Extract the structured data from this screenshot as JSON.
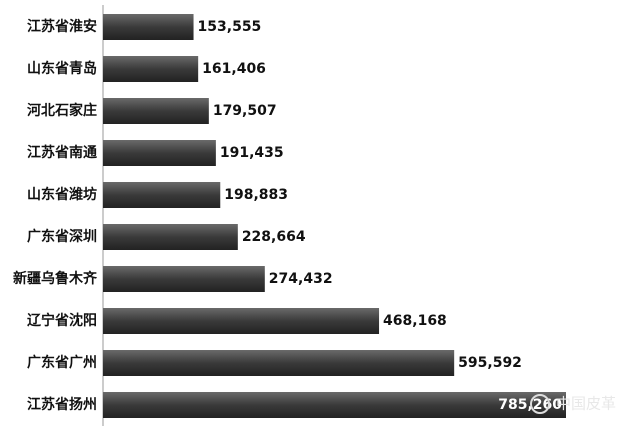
{
  "chart_data": {
    "type": "bar",
    "orientation": "horizontal",
    "categories": [
      "江苏省淮安",
      "山东省青岛",
      "河北石家庄",
      "江苏省南通",
      "山东省潍坊",
      "广东省深圳",
      "新疆乌鲁木齐",
      "辽宁省沈阳",
      "广东省广州",
      "江苏省扬州"
    ],
    "values": [
      153555,
      161406,
      179507,
      191435,
      198883,
      228664,
      274432,
      468168,
      595592,
      785260
    ],
    "value_labels": [
      "153,555",
      "161,406",
      "179,507",
      "191,435",
      "198,883",
      "228,664",
      "274,432",
      "468,168",
      "595,592",
      "785,260"
    ],
    "color": "#3c3c3c"
  },
  "watermark": "中国皮革"
}
